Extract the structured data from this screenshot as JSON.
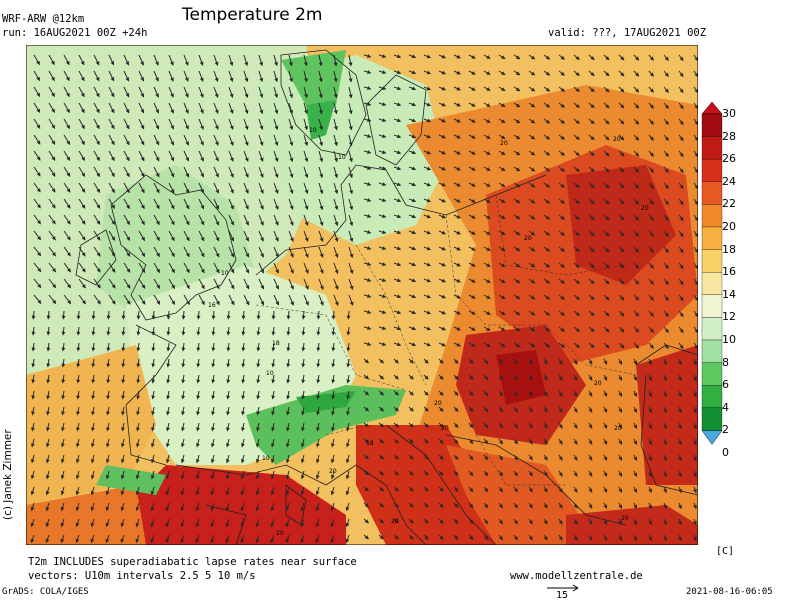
{
  "header": {
    "model": "WRF-ARW @12km",
    "run": "run: 16AUG2021 00Z +24h",
    "title": "Temperature 2m",
    "valid": "valid: ???, 17AUG2021 00Z"
  },
  "credit": "(c) Janek Zimmer",
  "footer": {
    "note1": "T2m INCLUDES superadiabatic lapse rates near surface",
    "note2": "vectors: U10m intervals 2.5 5 10 m/s",
    "website": "www.modellzentrale.de",
    "grads": "GrADS: COLA/IGES",
    "vector_ref": "15",
    "timestamp": "2021-08-16-06:05"
  },
  "colorbar": {
    "unit": "[C]",
    "labels": [
      "30",
      "28",
      "26",
      "24",
      "22",
      "20",
      "18",
      "16",
      "14",
      "12",
      "10",
      "8",
      "6",
      "4",
      "2",
      "0"
    ],
    "colors": [
      "#c8101a",
      "#a00c10",
      "#c01a15",
      "#d9301c",
      "#e85a20",
      "#f08a28",
      "#f5b040",
      "#f8d068",
      "#f8e7a0",
      "#f0f5d0",
      "#d0efc8",
      "#a0e0a0",
      "#60c860",
      "#30b040",
      "#109030",
      "#4aa8e0"
    ]
  },
  "map_labels": [
    "10",
    "10",
    "10",
    "16",
    "18",
    "20",
    "20",
    "20",
    "20",
    "20",
    "10",
    "20",
    "20",
    "20",
    "18",
    "10",
    "20",
    "20",
    "20",
    "20"
  ]
}
